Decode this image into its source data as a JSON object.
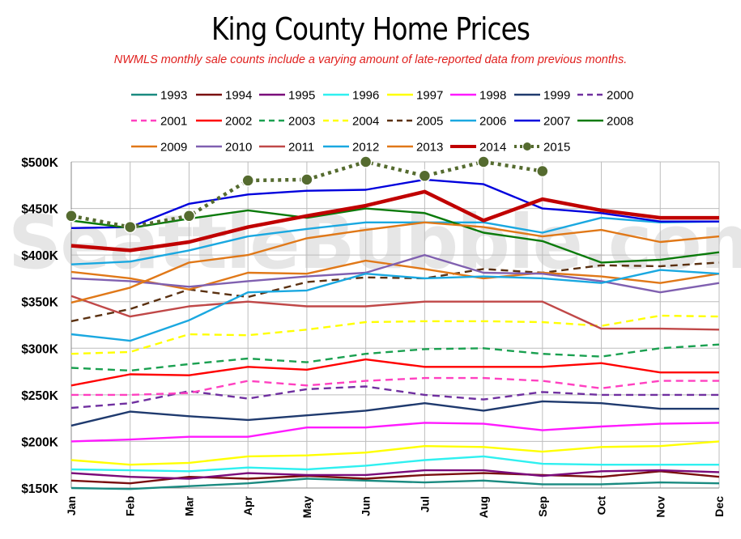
{
  "title": "King County Home Prices",
  "subtitle": "NWMLS monthly sale counts include a varying amount of late-reported  data from previous months.",
  "watermark": "SeattleBubble.com",
  "chart_data": {
    "type": "line",
    "categories": [
      "Jan",
      "Feb",
      "Mar",
      "Apr",
      "May",
      "Jun",
      "Jul",
      "Aug",
      "Sep",
      "Oct",
      "Nov",
      "Dec"
    ],
    "ylim": [
      150000,
      500000
    ],
    "yticks": [
      150000,
      200000,
      250000,
      300000,
      350000,
      400000,
      450000,
      500000
    ],
    "ytick_labels": [
      "$150K",
      "$200K",
      "$250K",
      "$300K",
      "$350K",
      "$400K",
      "$450K",
      "$500K"
    ],
    "grid": true,
    "legend_placement": "top",
    "series": [
      {
        "name": "1993",
        "color": "#1a8a80",
        "style": "solid",
        "values": [
          150000,
          149000,
          152000,
          155000,
          160000,
          158000,
          156000,
          158000,
          154000,
          154000,
          156000,
          155000
        ]
      },
      {
        "name": "1994",
        "color": "#7a0f0f",
        "style": "solid",
        "values": [
          158000,
          155000,
          162000,
          160000,
          163000,
          160000,
          164000,
          166000,
          164000,
          162000,
          168000,
          162000
        ]
      },
      {
        "name": "1995",
        "color": "#7a0a7a",
        "style": "solid",
        "values": [
          166000,
          162000,
          160000,
          166000,
          164000,
          164000,
          169000,
          169000,
          163000,
          168000,
          169000,
          167000
        ]
      },
      {
        "name": "1996",
        "color": "#2ff0f0",
        "style": "solid",
        "values": [
          170000,
          169000,
          168000,
          172000,
          170000,
          174000,
          180000,
          184000,
          176000,
          175000,
          175000,
          175000
        ]
      },
      {
        "name": "1997",
        "color": "#ffff00",
        "style": "solid",
        "values": [
          180000,
          175000,
          177000,
          184000,
          185000,
          188000,
          195000,
          194000,
          189000,
          194000,
          195000,
          200000
        ]
      },
      {
        "name": "1998",
        "color": "#ff1aff",
        "style": "solid",
        "values": [
          200000,
          202000,
          205000,
          205000,
          215000,
          215000,
          220000,
          219000,
          212000,
          216000,
          219000,
          220000
        ]
      },
      {
        "name": "1999",
        "color": "#1f3a6e",
        "style": "solid",
        "values": [
          217000,
          232000,
          227000,
          223000,
          228000,
          233000,
          241000,
          233000,
          243000,
          241000,
          235000,
          235000
        ]
      },
      {
        "name": "2000",
        "color": "#7030a0",
        "style": "dashed",
        "values": [
          236000,
          241000,
          254000,
          246000,
          256000,
          259000,
          250000,
          245000,
          253000,
          250000,
          250000,
          250000
        ]
      },
      {
        "name": "2001",
        "color": "#ff40c0",
        "style": "dashed",
        "values": [
          250000,
          250000,
          252000,
          265000,
          260000,
          265000,
          268000,
          268000,
          265000,
          257000,
          265000,
          265000
        ]
      },
      {
        "name": "2002",
        "color": "#ff0000",
        "style": "solid",
        "values": [
          260000,
          272000,
          271000,
          280000,
          277000,
          288000,
          280000,
          280000,
          280000,
          284000,
          274000,
          274000
        ]
      },
      {
        "name": "2003",
        "color": "#1aa050",
        "style": "dashed",
        "values": [
          279000,
          276000,
          283000,
          289000,
          285000,
          294000,
          299000,
          300000,
          294000,
          291000,
          300000,
          304000
        ]
      },
      {
        "name": "2004",
        "color": "#ffff00",
        "style": "dashed",
        "values": [
          294000,
          296000,
          315000,
          314000,
          320000,
          328000,
          329000,
          329000,
          328000,
          324000,
          335000,
          334000
        ]
      },
      {
        "name": "2005",
        "color": "#5a3010",
        "style": "dashed",
        "values": [
          329000,
          342000,
          363000,
          355000,
          371000,
          376000,
          375000,
          385000,
          381000,
          389000,
          388000,
          392000
        ]
      },
      {
        "name": "2006",
        "color": "#1aa8e0",
        "style": "solid",
        "values": [
          390000,
          393000,
          405000,
          420000,
          428000,
          435000,
          435000,
          435000,
          424000,
          440000,
          435000,
          436000
        ]
      },
      {
        "name": "2007",
        "color": "#0000dd",
        "style": "solid",
        "values": [
          429000,
          430000,
          455000,
          465000,
          469000,
          470000,
          481000,
          476000,
          450000,
          445000,
          436000,
          436000
        ]
      },
      {
        "name": "2008",
        "color": "#0a7a0a",
        "style": "solid",
        "values": [
          437000,
          429000,
          439000,
          448000,
          440000,
          450000,
          445000,
          424000,
          415000,
          392000,
          395000,
          403000
        ]
      },
      {
        "name": "2009",
        "color": "#e07818",
        "style": "solid",
        "values": [
          382000,
          375000,
          363000,
          381000,
          380000,
          394000,
          385000,
          375000,
          381000,
          377000,
          370000,
          380000
        ]
      },
      {
        "name": "2010",
        "color": "#8060b0",
        "style": "solid",
        "values": [
          375000,
          372000,
          366000,
          372000,
          377000,
          381000,
          400000,
          381000,
          380000,
          372000,
          360000,
          370000
        ]
      },
      {
        "name": "2011",
        "color": "#c04848",
        "style": "solid",
        "values": [
          356000,
          334000,
          345000,
          350000,
          345000,
          345000,
          350000,
          350000,
          350000,
          321000,
          321000,
          320000
        ]
      },
      {
        "name": "2012",
        "color": "#1aa8e0",
        "style": "solid",
        "values": [
          315000,
          308000,
          330000,
          360000,
          362000,
          380000,
          375000,
          377000,
          375000,
          370000,
          384000,
          380000
        ]
      },
      {
        "name": "2013",
        "color": "#e07818",
        "style": "solid",
        "values": [
          349000,
          365000,
          392000,
          400000,
          418000,
          427000,
          435000,
          430000,
          420000,
          427000,
          414000,
          420000
        ]
      },
      {
        "name": "2014",
        "color": "#c00000",
        "style": "solid",
        "values": [
          410000,
          405000,
          414000,
          430000,
          442000,
          453000,
          468000,
          437000,
          460000,
          448000,
          440000,
          440000
        ]
      },
      {
        "name": "2015",
        "color": "#556b2f",
        "style": "dotted-markers",
        "values": [
          442000,
          430000,
          442000,
          480000,
          481000,
          500000,
          485000,
          500000,
          490000,
          null,
          null,
          null
        ]
      }
    ]
  }
}
